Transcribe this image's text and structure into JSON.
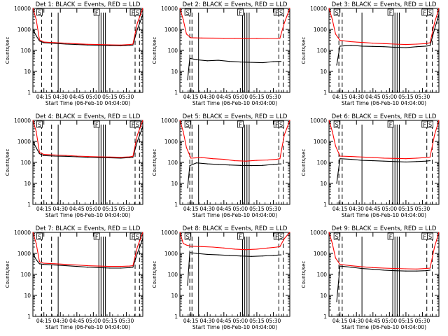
{
  "colors": {
    "events": "#000000",
    "lld": "#ff0000",
    "frame": "#000000",
    "background": "#ffffff"
  },
  "chart_data": {
    "type": "line",
    "shared": {
      "xlabel": "Start Time (06-Feb-10 04:04:00)",
      "ylabel": "Counts/sec",
      "xlim": [
        0,
        100
      ],
      "ylim": [
        1,
        10000
      ],
      "yscale": "log",
      "x_tick_positions": [
        10,
        25,
        40,
        55,
        70,
        85
      ],
      "x_tick_labels": [
        "04:15",
        "04:30",
        "04:45",
        "05:00",
        "05:15",
        "05:30"
      ],
      "y_tick_values": [
        1,
        10,
        100,
        1000,
        10000
      ],
      "y_tick_labels": [
        "1",
        "10",
        "100",
        "1000",
        "10000"
      ],
      "legend": "BLACK = Events, RED = LLD"
    },
    "panels": [
      {
        "title": "Det 1: BLACK = Events, RED = LLD",
        "flag_labels": [
          "S",
          "F",
          "F",
          "S"
        ],
        "dashed_x": [
          8,
          17,
          93,
          97
        ],
        "solid_x": [
          23,
          60,
          62,
          64,
          66
        ],
        "series": [
          {
            "name": "Events",
            "color": "#000000",
            "x": [
              0,
              3,
              6,
              10,
              20,
              30,
              40,
              50,
              60,
              70,
              80,
              88,
              91,
              95,
              100
            ],
            "values": [
              1000,
              500,
              280,
              230,
              215,
              200,
              190,
              180,
              175,
              170,
              165,
              175,
              180,
              1000,
              5000
            ]
          },
          {
            "name": "LLD",
            "color": "#ff0000",
            "x": [
              0,
              3,
              6,
              10,
              20,
              30,
              40,
              50,
              60,
              70,
              80,
              88,
              91,
              95,
              100
            ],
            "values": [
              10000,
              3000,
              320,
              250,
              235,
              220,
              205,
              195,
              190,
              185,
              180,
              190,
              200,
              2000,
              10000
            ]
          }
        ]
      },
      {
        "title": "Det 2: BLACK = Events, RED = LLD",
        "flag_labels": [
          "S",
          "F",
          "F",
          "S"
        ],
        "dashed_x": [
          9,
          11,
          90,
          94
        ],
        "solid_x": [
          17,
          57,
          59,
          61,
          63
        ],
        "series": [
          {
            "name": "Events",
            "color": "#000000",
            "x": [
              7,
              9,
              15,
              25,
              35,
              45,
              55,
              65,
              75,
              85,
              92
            ],
            "values": [
              4,
              42,
              36,
              32,
              34,
              30,
              28,
              27,
              26,
              29,
              30
            ]
          },
          {
            "name": "LLD",
            "color": "#ff0000",
            "x": [
              0,
              3,
              6,
              10,
              20,
              30,
              40,
              50,
              60,
              70,
              80,
              88,
              91,
              95,
              100
            ],
            "values": [
              10000,
              3000,
              600,
              400,
              390,
              385,
              380,
              380,
              375,
              375,
              370,
              370,
              380,
              2000,
              10000
            ]
          }
        ]
      },
      {
        "title": "Det 3: BLACK = Events, RED = LLD",
        "flag_labels": [
          "S",
          "F",
          "F",
          "S"
        ],
        "dashed_x": [
          9,
          12,
          89,
          94
        ],
        "solid_x": [
          30,
          58,
          60,
          62,
          64
        ],
        "series": [
          {
            "name": "Events",
            "color": "#000000",
            "x": [
              7,
              10,
              20,
              30,
              40,
              50,
              60,
              70,
              80,
              88,
              92,
              96,
              100
            ],
            "values": [
              20,
              160,
              175,
              160,
              155,
              150,
              140,
              135,
              150,
              160,
              170,
              1000,
              5000
            ]
          },
          {
            "name": "LLD",
            "color": "#ff0000",
            "x": [
              0,
              3,
              6,
              10,
              20,
              30,
              40,
              50,
              60,
              70,
              80,
              88,
              92,
              96,
              100
            ],
            "values": [
              10000,
              3000,
              600,
              300,
              260,
              240,
              220,
              210,
              200,
              190,
              200,
              210,
              230,
              2000,
              10000
            ]
          }
        ]
      },
      {
        "title": "Det 4: BLACK = Events, RED = LLD",
        "flag_labels": [
          "S",
          "F",
          "F",
          "S"
        ],
        "dashed_x": [
          8,
          17,
          93,
          97
        ],
        "solid_x": [
          23,
          60,
          62,
          64,
          66
        ],
        "series": [
          {
            "name": "Events",
            "color": "#000000",
            "x": [
              0,
              3,
              6,
              10,
              20,
              30,
              40,
              50,
              60,
              70,
              80,
              88,
              91,
              95,
              100
            ],
            "values": [
              1000,
              500,
              260,
              210,
              200,
              195,
              185,
              175,
              170,
              165,
              160,
              170,
              175,
              1000,
              5000
            ]
          },
          {
            "name": "LLD",
            "color": "#ff0000",
            "x": [
              0,
              3,
              6,
              10,
              20,
              30,
              40,
              50,
              60,
              70,
              80,
              88,
              91,
              95,
              100
            ],
            "values": [
              10000,
              3000,
              300,
              240,
              225,
              215,
              200,
              190,
              185,
              180,
              175,
              185,
              195,
              2000,
              10000
            ]
          }
        ]
      },
      {
        "title": "Det 5: BLACK = Events, RED = LLD",
        "flag_labels": [
          "S",
          "F",
          "F",
          "S"
        ],
        "dashed_x": [
          9,
          11,
          90,
          94
        ],
        "solid_x": [
          17,
          57,
          59,
          61,
          63
        ],
        "series": [
          {
            "name": "Events",
            "color": "#000000",
            "x": [
              7,
              9,
              15,
              25,
              35,
              45,
              55,
              65,
              75,
              85,
              92
            ],
            "values": [
              6,
              70,
              95,
              85,
              80,
              75,
              72,
              70,
              72,
              80,
              85
            ]
          },
          {
            "name": "LLD",
            "color": "#ff0000",
            "x": [
              0,
              3,
              6,
              10,
              20,
              30,
              40,
              50,
              60,
              70,
              80,
              88,
              91,
              95,
              100
            ],
            "values": [
              10000,
              3000,
              500,
              160,
              170,
              150,
              140,
              120,
              115,
              125,
              130,
              140,
              150,
              2000,
              10000
            ]
          }
        ]
      },
      {
        "title": "Det 6: BLACK = Events, RED = LLD",
        "flag_labels": [
          "S",
          "F",
          "F",
          "S"
        ],
        "dashed_x": [
          9,
          12,
          89,
          94
        ],
        "solid_x": [
          30,
          58,
          60,
          62,
          64
        ],
        "series": [
          {
            "name": "Events",
            "color": "#000000",
            "x": [
              7,
              10,
              20,
              30,
              40,
              50,
              60,
              70,
              80,
              88,
              92
            ],
            "values": [
              10,
              150,
              140,
              125,
              120,
              115,
              110,
              105,
              110,
              115,
              120
            ]
          },
          {
            "name": "LLD",
            "color": "#ff0000",
            "x": [
              0,
              3,
              6,
              10,
              20,
              30,
              40,
              50,
              60,
              70,
              80,
              88,
              92,
              96,
              100
            ],
            "values": [
              10000,
              3000,
              600,
              200,
              190,
              180,
              170,
              160,
              155,
              150,
              160,
              170,
              180,
              2000,
              10000
            ]
          }
        ]
      },
      {
        "title": "Det 7: BLACK = Events, RED = LLD",
        "flag_labels": [
          "S",
          "F",
          "F",
          "S"
        ],
        "dashed_x": [
          8,
          17,
          93,
          97
        ],
        "solid_x": [
          23,
          60,
          62,
          64,
          66
        ],
        "series": [
          {
            "name": "Events",
            "color": "#000000",
            "x": [
              0,
              3,
              6,
              10,
              20,
              30,
              40,
              50,
              60,
              70,
              80,
              88,
              91,
              95,
              100
            ],
            "values": [
              1000,
              500,
              320,
              300,
              280,
              260,
              240,
              220,
              210,
              200,
              200,
              210,
              220,
              1000,
              5000
            ]
          },
          {
            "name": "LLD",
            "color": "#ff0000",
            "x": [
              0,
              3,
              6,
              10,
              20,
              30,
              40,
              50,
              60,
              70,
              80,
              88,
              91,
              95,
              100
            ],
            "values": [
              10000,
              3000,
              400,
              340,
              320,
              300,
              280,
              260,
              250,
              240,
              240,
              250,
              260,
              2000,
              10000
            ]
          }
        ]
      },
      {
        "title": "Det 8: BLACK = Events, RED = LLD",
        "flag_labels": [
          "S",
          "F",
          "F",
          "S"
        ],
        "dashed_x": [
          9,
          11,
          90,
          94
        ],
        "solid_x": [
          17,
          57,
          59,
          61,
          63
        ],
        "series": [
          {
            "name": "Events",
            "color": "#000000",
            "x": [
              7,
              9,
              15,
              25,
              35,
              45,
              55,
              65,
              75,
              85,
              92
            ],
            "values": [
              30,
              1100,
              1000,
              900,
              850,
              800,
              750,
              720,
              750,
              800,
              850
            ]
          },
          {
            "name": "LLD",
            "color": "#ff0000",
            "x": [
              0,
              3,
              6,
              10,
              20,
              30,
              40,
              50,
              60,
              70,
              80,
              88,
              91,
              95,
              100
            ],
            "values": [
              10000,
              3000,
              2500,
              2200,
              2100,
              2000,
              1800,
              1600,
              1500,
              1600,
              1800,
              2000,
              2100,
              5000,
              10000
            ]
          }
        ]
      },
      {
        "title": "Det 9: BLACK = Events, RED = LLD",
        "flag_labels": [
          "S",
          "F",
          "F",
          "S"
        ],
        "dashed_x": [
          9,
          12,
          89,
          94
        ],
        "solid_x": [
          30,
          58,
          60,
          62,
          64
        ],
        "series": [
          {
            "name": "Events",
            "color": "#000000",
            "x": [
              7,
              10,
              20,
              30,
              40,
              50,
              60,
              70,
              80,
              88,
              92
            ],
            "values": [
              5,
              250,
              220,
              190,
              175,
              160,
              150,
              145,
              145,
              150,
              160
            ]
          },
          {
            "name": "LLD",
            "color": "#ff0000",
            "x": [
              0,
              3,
              6,
              10,
              20,
              30,
              40,
              50,
              60,
              70,
              80,
              88,
              92,
              96,
              100
            ],
            "values": [
              10000,
              3000,
              600,
              300,
              260,
              230,
              210,
              200,
              190,
              185,
              180,
              190,
              200,
              2000,
              10000
            ]
          }
        ]
      }
    ]
  }
}
